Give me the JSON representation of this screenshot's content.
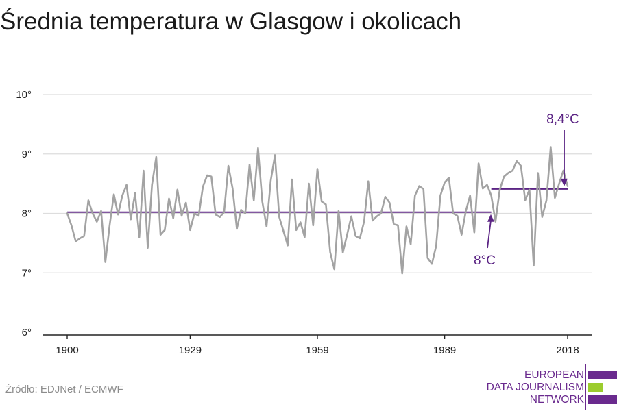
{
  "title": "Średnia temperatura w Glasgow i okolicach",
  "source": "Źródło: EDJNet / ECMWF",
  "logo": {
    "line1": "EUROPEAN",
    "line2": "DATA JOURNALISM",
    "line3": "NETWORK",
    "colors": {
      "purple": "#6a2a8e",
      "green": "#9ccc2e"
    }
  },
  "colors": {
    "series": "#a3a3a3",
    "average": "#5b2484",
    "grid": "#dddddd",
    "axis": "#222222"
  },
  "chart_data": {
    "type": "line",
    "title": "Średnia temperatura w Glasgow i okolicach",
    "xlabel": "",
    "ylabel": "",
    "xlim": [
      1900,
      2018
    ],
    "ylim": [
      6,
      10
    ],
    "yticks": [
      {
        "value": 6,
        "label": "6°"
      },
      {
        "value": 7,
        "label": "7°"
      },
      {
        "value": 8,
        "label": "8°"
      },
      {
        "value": 9,
        "label": "9°"
      },
      {
        "value": 10,
        "label": "10°"
      }
    ],
    "xticks": [
      {
        "value": 1900,
        "label": "1900"
      },
      {
        "value": 1929,
        "label": "1929"
      },
      {
        "value": 1959,
        "label": "1959"
      },
      {
        "value": 1989,
        "label": "1989"
      },
      {
        "value": 2018,
        "label": "2018"
      }
    ],
    "grid": true,
    "series": [
      {
        "x": [
          1900,
          1901,
          1902,
          1903,
          1904,
          1905,
          1906,
          1907,
          1908,
          1909,
          1910,
          1911,
          1912,
          1913,
          1914,
          1915,
          1916,
          1917,
          1918,
          1919,
          1920,
          1921,
          1922,
          1923,
          1924,
          1925,
          1926,
          1927,
          1928,
          1929,
          1930,
          1931,
          1932,
          1933,
          1934,
          1935,
          1936,
          1937,
          1938,
          1939,
          1940,
          1941,
          1942,
          1943,
          1944,
          1945,
          1946,
          1947,
          1948,
          1949,
          1950,
          1951,
          1952,
          1953,
          1954,
          1955,
          1956,
          1957,
          1958,
          1959,
          1960,
          1961,
          1962,
          1963,
          1964,
          1965,
          1966,
          1967,
          1968,
          1969,
          1970,
          1971,
          1972,
          1973,
          1974,
          1975,
          1976,
          1977,
          1978,
          1979,
          1980,
          1981,
          1982,
          1983,
          1984,
          1985,
          1986,
          1987,
          1988,
          1989,
          1990,
          1991,
          1992,
          1993,
          1994,
          1995,
          1996,
          1997,
          1998,
          1999,
          2000,
          2001,
          2002,
          2003,
          2004,
          2005,
          2006,
          2007,
          2008,
          2009,
          2010,
          2011,
          2012,
          2013,
          2014,
          2015,
          2016,
          2017,
          2018
        ],
        "values": [
          8.0,
          7.8,
          7.53,
          7.58,
          7.62,
          8.22,
          8.0,
          7.86,
          8.04,
          7.18,
          7.8,
          8.32,
          7.98,
          8.3,
          8.48,
          7.9,
          8.34,
          7.6,
          8.72,
          7.42,
          8.48,
          8.95,
          7.64,
          7.72,
          8.25,
          7.92,
          8.4,
          7.96,
          8.18,
          7.72,
          8.0,
          7.96,
          8.45,
          8.64,
          8.62,
          7.98,
          7.94,
          8.02,
          8.8,
          8.42,
          7.74,
          8.06,
          8.0,
          8.82,
          8.22,
          9.1,
          8.2,
          7.78,
          8.55,
          8.98,
          7.94,
          7.7,
          7.46,
          8.57,
          7.72,
          7.85,
          7.6,
          8.5,
          7.8,
          8.75,
          8.2,
          8.15,
          7.35,
          7.06,
          8.04,
          7.34,
          7.64,
          7.95,
          7.62,
          7.58,
          7.86,
          8.54,
          7.88,
          7.95,
          8.0,
          8.28,
          8.18,
          7.82,
          7.8,
          6.99,
          7.78,
          7.48,
          8.3,
          8.46,
          8.41,
          7.25,
          7.15,
          7.45,
          8.3,
          8.52,
          8.6,
          8.0,
          7.96,
          7.64,
          8.04,
          8.3,
          7.68,
          8.84,
          8.42,
          8.48,
          8.3,
          7.86,
          8.4,
          8.62,
          8.68,
          8.72,
          8.88,
          8.8,
          8.22,
          8.4,
          7.12,
          8.68,
          7.94,
          8.22,
          9.12,
          8.26,
          8.5,
          8.72,
          8.46
        ]
      }
    ],
    "reference_lines": [
      {
        "label": "8°C",
        "value": 8.02,
        "x_start": 1900,
        "x_end": 2000
      },
      {
        "label": "8,4°C",
        "value": 8.41,
        "x_start": 2000,
        "x_end": 2018
      }
    ]
  }
}
